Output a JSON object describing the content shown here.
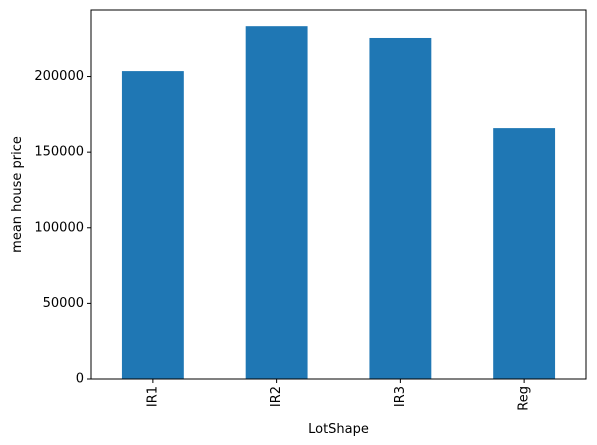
{
  "chart_data": {
    "type": "bar",
    "title": "",
    "xlabel": "LotShape",
    "ylabel": "mean house price",
    "categories": [
      "IR1",
      "IR2",
      "IR3",
      "Reg"
    ],
    "values": [
      203600,
      233300,
      225500,
      165900
    ],
    "ylim": [
      0,
      244000
    ],
    "yticks": [
      0,
      50000,
      100000,
      150000,
      200000
    ],
    "ytick_labels": [
      "0",
      "50000",
      "100000",
      "150000",
      "200000"
    ],
    "bar_color": "#1f77b4",
    "x_tick_rotation": "vertical",
    "grid": false,
    "legend": "none"
  }
}
